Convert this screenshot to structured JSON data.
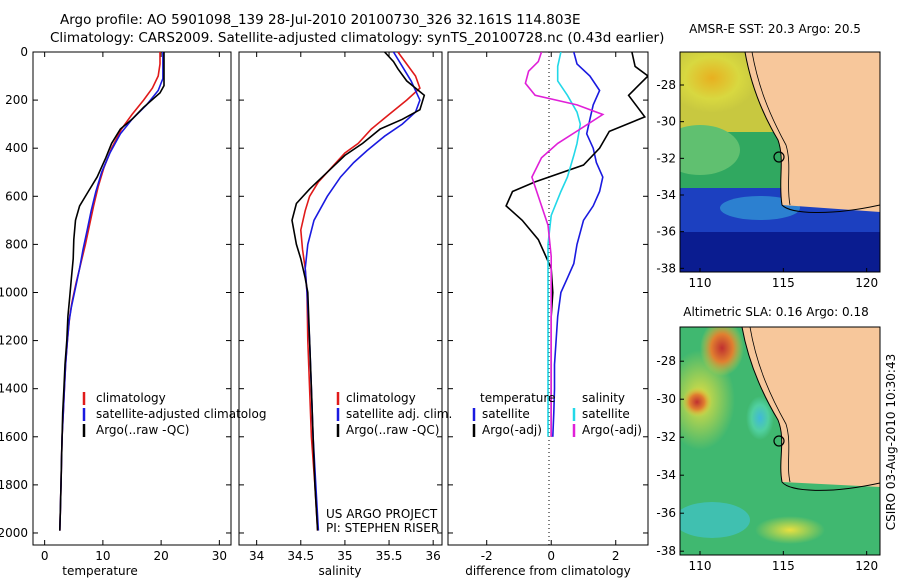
{
  "header": {
    "line1": "Argo profile: AO 5901098_139 28-Jul-2010 20100730_326 32.161S 114.803E",
    "line2": "Climatology: CARS2009. Satellite-adjusted climatology: synTS_20100728.nc (0.43d earlier)"
  },
  "colors": {
    "climatology": "#e01a1a",
    "satellite": "#1a1ae0",
    "argo": "#000000",
    "satellite_diff": "#22d8e8",
    "argo_diff": "#e020d8",
    "land": "#f7c79b"
  },
  "chart_data": [
    {
      "type": "line",
      "title": "",
      "xlabel": "temperature",
      "ylabel": "",
      "xlim": [
        -2,
        32
      ],
      "ylim": [
        2050,
        0
      ],
      "xticks": [
        "0",
        "10",
        "20",
        "30"
      ],
      "yticks": [
        "0",
        "200",
        "400",
        "600",
        "800",
        "1000",
        "1200",
        "1400",
        "1600",
        "1800",
        "2000"
      ],
      "legend": [
        "climatology",
        "satellite-adjusted climatolog",
        "Argo(..raw -QC)"
      ],
      "series": [
        {
          "name": "climatology",
          "color_key": "climatology",
          "points": [
            [
              19.8,
              0
            ],
            [
              19.8,
              50
            ],
            [
              19.5,
              100
            ],
            [
              18.5,
              150
            ],
            [
              17,
              200
            ],
            [
              15,
              260
            ],
            [
              13.2,
              320
            ],
            [
              11.5,
              400
            ],
            [
              10.2,
              480
            ],
            [
              9.2,
              560
            ],
            [
              8.4,
              640
            ],
            [
              7.7,
              720
            ],
            [
              7.0,
              800
            ],
            [
              6.2,
              880
            ],
            [
              5.4,
              960
            ],
            [
              4.7,
              1040
            ],
            [
              4.3,
              1100
            ],
            [
              3.9,
              1200
            ],
            [
              3.6,
              1300
            ],
            [
              3.4,
              1400
            ],
            [
              3.2,
              1500
            ],
            [
              3.0,
              1600
            ],
            [
              2.9,
              1700
            ],
            [
              2.8,
              1800
            ],
            [
              2.7,
              1900
            ],
            [
              2.6,
              1990
            ]
          ]
        },
        {
          "name": "satellite",
          "color_key": "satellite",
          "points": [
            [
              20.3,
              0
            ],
            [
              20.3,
              60
            ],
            [
              20.3,
              110
            ],
            [
              19.5,
              160
            ],
            [
              17.5,
              220
            ],
            [
              15,
              280
            ],
            [
              13,
              340
            ],
            [
              11.2,
              420
            ],
            [
              9.8,
              500
            ],
            [
              8.8,
              580
            ],
            [
              8.0,
              660
            ],
            [
              7.3,
              740
            ],
            [
              6.6,
              820
            ],
            [
              6.0,
              900
            ],
            [
              5.3,
              980
            ],
            [
              4.6,
              1060
            ],
            [
              4.2,
              1120
            ],
            [
              3.9,
              1200
            ],
            [
              3.6,
              1300
            ],
            [
              3.4,
              1400
            ],
            [
              3.2,
              1500
            ],
            [
              3.0,
              1600
            ],
            [
              2.9,
              1700
            ],
            [
              2.8,
              1800
            ],
            [
              2.7,
              1900
            ],
            [
              2.6,
              1990
            ]
          ]
        },
        {
          "name": "Argo(..raw -QC)",
          "color_key": "argo",
          "points": [
            [
              20.5,
              0
            ],
            [
              20.5,
              60
            ],
            [
              20.5,
              140
            ],
            [
              19.8,
              170
            ],
            [
              17,
              230
            ],
            [
              15,
              280
            ],
            [
              13,
              320
            ],
            [
              11.5,
              380
            ],
            [
              10.5,
              440
            ],
            [
              9,
              520
            ],
            [
              7.5,
              580
            ],
            [
              6.0,
              640
            ],
            [
              5.3,
              700
            ],
            [
              5.0,
              780
            ],
            [
              4.9,
              860
            ],
            [
              4.6,
              940
            ],
            [
              4.3,
              1020
            ],
            [
              4.0,
              1100
            ],
            [
              3.8,
              1200
            ],
            [
              3.5,
              1300
            ],
            [
              3.3,
              1400
            ],
            [
              3.1,
              1500
            ],
            [
              3.0,
              1600
            ],
            [
              2.9,
              1700
            ],
            [
              2.8,
              1800
            ],
            [
              2.7,
              1900
            ],
            [
              2.6,
              1990
            ]
          ]
        }
      ]
    },
    {
      "type": "line",
      "title": "",
      "xlabel": "salinity",
      "ylabel": "",
      "xlim": [
        33.8,
        36.1
      ],
      "ylim": [
        2050,
        0
      ],
      "xticks": [
        "34",
        "34.5",
        "35",
        "35.5",
        "36"
      ],
      "yticks": [],
      "legend": [
        "climatology",
        "satellite adj. clim.",
        "Argo(..raw -QC)"
      ],
      "annotation": [
        "US ARGO PROJECT",
        "PI: STEPHEN RISER"
      ],
      "series": [
        {
          "name": "climatology",
          "color_key": "climatology",
          "points": [
            [
              35.6,
              0
            ],
            [
              35.7,
              50
            ],
            [
              35.8,
              100
            ],
            [
              35.85,
              150
            ],
            [
              35.7,
              200
            ],
            [
              35.5,
              260
            ],
            [
              35.3,
              320
            ],
            [
              35.15,
              380
            ],
            [
              35.0,
              420
            ],
            [
              34.85,
              480
            ],
            [
              34.7,
              540
            ],
            [
              34.6,
              600
            ],
            [
              34.55,
              660
            ],
            [
              34.5,
              740
            ],
            [
              34.52,
              820
            ],
            [
              34.55,
              900
            ],
            [
              34.57,
              1000
            ],
            [
              34.58,
              1200
            ],
            [
              34.6,
              1400
            ],
            [
              34.62,
              1600
            ],
            [
              34.66,
              1800
            ],
            [
              34.69,
              1990
            ]
          ]
        },
        {
          "name": "satellite",
          "color_key": "satellite",
          "points": [
            [
              35.55,
              0
            ],
            [
              35.65,
              60
            ],
            [
              35.75,
              120
            ],
            [
              35.85,
              200
            ],
            [
              35.8,
              250
            ],
            [
              35.65,
              300
            ],
            [
              35.45,
              350
            ],
            [
              35.25,
              410
            ],
            [
              35.1,
              460
            ],
            [
              34.95,
              520
            ],
            [
              34.8,
              600
            ],
            [
              34.65,
              700
            ],
            [
              34.58,
              800
            ],
            [
              34.55,
              900
            ],
            [
              34.57,
              1000
            ],
            [
              34.6,
              1200
            ],
            [
              34.62,
              1400
            ],
            [
              34.64,
              1600
            ],
            [
              34.67,
              1800
            ],
            [
              34.7,
              1990
            ]
          ]
        },
        {
          "name": "Argo(..raw -QC)",
          "color_key": "argo",
          "points": [
            [
              35.45,
              0
            ],
            [
              35.55,
              40
            ],
            [
              35.6,
              70
            ],
            [
              35.7,
              120
            ],
            [
              35.9,
              180
            ],
            [
              35.85,
              240
            ],
            [
              35.65,
              280
            ],
            [
              35.4,
              320
            ],
            [
              35.2,
              380
            ],
            [
              35.0,
              430
            ],
            [
              34.8,
              500
            ],
            [
              34.6,
              570
            ],
            [
              34.45,
              630
            ],
            [
              34.4,
              700
            ],
            [
              34.45,
              800
            ],
            [
              34.5,
              860
            ],
            [
              34.55,
              940
            ],
            [
              34.58,
              1000
            ],
            [
              34.6,
              1200
            ],
            [
              34.62,
              1400
            ],
            [
              34.64,
              1600
            ],
            [
              34.66,
              1800
            ],
            [
              34.69,
              1990
            ]
          ]
        }
      ]
    },
    {
      "type": "line",
      "title": "",
      "xlabel": "difference from climatology",
      "ylabel": "",
      "xlim": [
        -3.2,
        3.0
      ],
      "ylim": [
        2050,
        0
      ],
      "xticks": [
        "-2",
        "0",
        "2"
      ],
      "yticks": [],
      "legend_left": [
        "temperature",
        "satellite",
        "Argo(-adj)"
      ],
      "legend_right": [
        "salinity",
        "satellite",
        "Argo(-adj)"
      ],
      "series": [
        {
          "name": "temperature satellite",
          "color_key": "satellite",
          "points": [
            [
              0.7,
              0
            ],
            [
              0.8,
              50
            ],
            [
              1.2,
              100
            ],
            [
              1.5,
              160
            ],
            [
              1.3,
              220
            ],
            [
              1.2,
              280
            ],
            [
              1.1,
              340
            ],
            [
              1.3,
              400
            ],
            [
              1.4,
              460
            ],
            [
              1.6,
              520
            ],
            [
              1.5,
              580
            ],
            [
              1.3,
              640
            ],
            [
              1.0,
              700
            ],
            [
              0.8,
              800
            ],
            [
              0.7,
              880
            ],
            [
              0.5,
              940
            ],
            [
              0.3,
              1000
            ],
            [
              0.2,
              1100
            ],
            [
              0.15,
              1200
            ],
            [
              0.1,
              1300
            ],
            [
              0.1,
              1400
            ],
            [
              0.08,
              1500
            ],
            [
              0.05,
              1600
            ]
          ]
        },
        {
          "name": "temperature Argo(-adj)",
          "color_key": "argo",
          "points": [
            [
              2.5,
              0
            ],
            [
              2.6,
              60
            ],
            [
              3.0,
              100
            ],
            [
              2.4,
              180
            ],
            [
              2.9,
              270
            ],
            [
              1.8,
              330
            ],
            [
              1.5,
              400
            ],
            [
              1.0,
              470
            ],
            [
              -0.5,
              540
            ],
            [
              -1.2,
              580
            ],
            [
              -1.4,
              640
            ],
            [
              -0.9,
              700
            ],
            [
              -0.4,
              780
            ],
            [
              -0.2,
              840
            ],
            [
              0.0,
              900
            ],
            [
              0.05,
              1000
            ],
            [
              0.0,
              1100
            ],
            [
              0.0,
              1200
            ],
            [
              0.0,
              1400
            ],
            [
              0.0,
              1600
            ]
          ]
        },
        {
          "name": "salinity satellite",
          "color_key": "satellite_diff",
          "points": [
            [
              0.3,
              0
            ],
            [
              0.2,
              60
            ],
            [
              0.2,
              120
            ],
            [
              0.5,
              180
            ],
            [
              0.8,
              250
            ],
            [
              0.9,
              300
            ],
            [
              0.8,
              380
            ],
            [
              0.7,
              430
            ],
            [
              0.5,
              520
            ],
            [
              0.3,
              580
            ],
            [
              0.0,
              680
            ],
            [
              -0.1,
              800
            ],
            [
              -0.1,
              950
            ],
            [
              -0.1,
              1100
            ],
            [
              -0.1,
              1300
            ],
            [
              -0.1,
              1450
            ],
            [
              -0.1,
              1600
            ]
          ]
        },
        {
          "name": "salinity Argo(-adj)",
          "color_key": "argo_diff",
          "points": [
            [
              -0.3,
              0
            ],
            [
              -0.4,
              40
            ],
            [
              -0.7,
              80
            ],
            [
              -0.8,
              130
            ],
            [
              -0.5,
              180
            ],
            [
              0.8,
              220
            ],
            [
              1.6,
              260
            ],
            [
              0.9,
              320
            ],
            [
              0.2,
              380
            ],
            [
              -0.3,
              440
            ],
            [
              -0.6,
              520
            ],
            [
              -0.4,
              600
            ],
            [
              -0.1,
              720
            ],
            [
              0.0,
              850
            ],
            [
              0.0,
              1000
            ],
            [
              0.0,
              1200
            ],
            [
              0.0,
              1400
            ],
            [
              0.0,
              1600
            ]
          ]
        }
      ]
    },
    {
      "type": "heatmap",
      "title": "AMSR-E SST: 20.3 Argo: 20.5",
      "xlabel": "",
      "ylabel": "",
      "xlim": [
        108.8,
        120.8
      ],
      "ylim": [
        -38.2,
        -26.2
      ],
      "xticks": [
        "110",
        "115",
        "120"
      ],
      "yticks": [
        "-28",
        "-30",
        "-32",
        "-34",
        "-36",
        "-38"
      ],
      "marker": {
        "lon": 114.803,
        "lat": -32.161
      }
    },
    {
      "type": "heatmap",
      "title": "Altimetric SLA: 0.16 Argo: 0.18",
      "xlabel": "",
      "ylabel": "",
      "xlim": [
        108.8,
        120.8
      ],
      "ylim": [
        -38.2,
        -26.2
      ],
      "xticks": [
        "110",
        "115",
        "120"
      ],
      "yticks": [
        "-28",
        "-30",
        "-32",
        "-34",
        "-36",
        "-38"
      ],
      "marker": {
        "lon": 114.803,
        "lat": -32.161
      }
    }
  ],
  "footer": {
    "credit": "CSIRO 03-Aug-2010 10:30:43"
  }
}
